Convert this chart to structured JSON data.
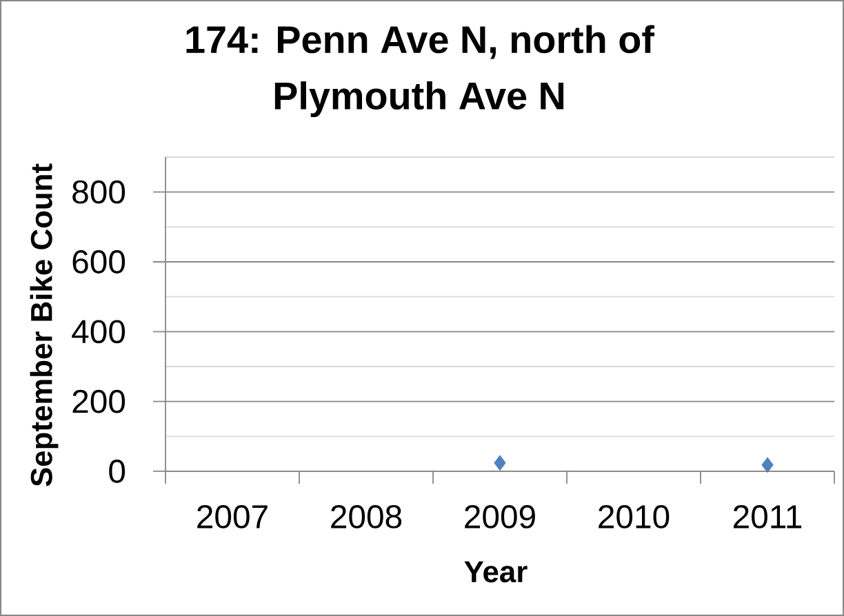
{
  "chart_data": {
    "type": "scatter",
    "title": "174: Penn Ave N, north of Plymouth Ave N",
    "xlabel": "Year",
    "ylabel": "September Bike Count",
    "categories": [
      "2007",
      "2008",
      "2009",
      "2010",
      "2011"
    ],
    "values": [
      null,
      null,
      24,
      null,
      18
    ],
    "color": "#4f81bd",
    "marker": "diamond",
    "ylim": [
      0,
      900
    ],
    "yticks": [
      0,
      200,
      400,
      600,
      800
    ],
    "grid": "y"
  }
}
